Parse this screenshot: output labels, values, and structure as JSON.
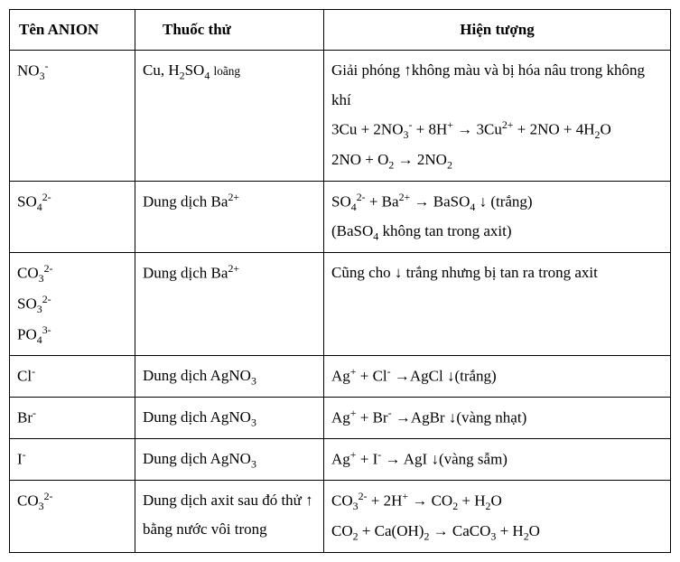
{
  "headers": {
    "anion": "Tên ANION",
    "reagent": "Thuốc thử",
    "phenomenon": "Hiện tượng"
  },
  "rows": [
    {
      "anion_html": "NO<span class='sub'>3</span><span class='sup'>-</span>",
      "reagent_html": "Cu, H<span class='sub'>2</span>SO<span class='sub'>4</span> <span class='small'>loãng</span>",
      "phenomenon_html": "Giải phóng ↑không màu và bị hóa nâu trong không khí<br>3Cu + 2NO<span class='sub'>3</span><span class='sup'>-</span> + 8H<span class='sup'>+</span> → 3Cu<span class='sup'>2+</span> + 2NO + 4H<span class='sub'>2</span>O<br>2NO + O<span class='sub'>2</span> → 2NO<span class='sub'>2</span>"
    },
    {
      "anion_html": "SO<span class='sub'>4</span><span class='sup'>2-</span>",
      "reagent_html": "Dung dịch Ba<span class='sup'>2+</span>",
      "phenomenon_html": "SO<span class='sub'>4</span><span class='sup'>2-</span> + Ba<span class='sup'>2+</span> → BaSO<span class='sub'>4</span> ↓ (trắng)<br>(BaSO<span class='sub'>4</span> không tan trong axit)"
    },
    {
      "anion_html": "CO<span class='sub'>3</span><span class='sup'>2-</span><br>SO<span class='sub'>3</span><span class='sup'>2-</span><br>PO<span class='sub'>4</span><span class='sup'>3-</span>",
      "reagent_html": "Dung dịch Ba<span class='sup'>2+</span>",
      "phenomenon_html": "Cũng cho ↓ trắng nhưng bị tan ra trong axit"
    },
    {
      "anion_html": "Cl<span class='sup'>-</span>",
      "reagent_html": "Dung dịch AgNO<span class='sub'>3</span>",
      "phenomenon_html": "Ag<span class='sup'>+</span> + Cl<span class='sup'>-</span>  →AgCl ↓(trắng)"
    },
    {
      "anion_html": "Br<span class='sup'>-</span>",
      "reagent_html": "Dung dịch AgNO<span class='sub'>3</span>",
      "phenomenon_html": "Ag<span class='sup'>+</span> + Br<span class='sup'>-</span>  →AgBr ↓(vàng nhạt)"
    },
    {
      "anion_html": "I<span class='sup'>-</span>",
      "reagent_html": "Dung dịch AgNO<span class='sub'>3</span>",
      "phenomenon_html": "Ag<span class='sup'>+</span> + I<span class='sup'>-</span>  → AgI ↓(vàng sẫm)"
    },
    {
      "anion_html": "CO<span class='sub'>3</span><span class='sup'>2-</span>",
      "reagent_html": "Dung dịch axit sau đó thử ↑ bằng nước vôi trong",
      "phenomenon_html": "CO<span class='sub'>3</span><span class='sup'>2-</span> + 2H<span class='sup'>+</span> → CO<span class='sub'>2</span> + H<span class='sub'>2</span>O<br>CO<span class='sub'>2</span> + Ca(OH)<span class='sub'>2</span> → CaCO<span class='sub'>3</span> + H<span class='sub'>2</span>O"
    }
  ]
}
